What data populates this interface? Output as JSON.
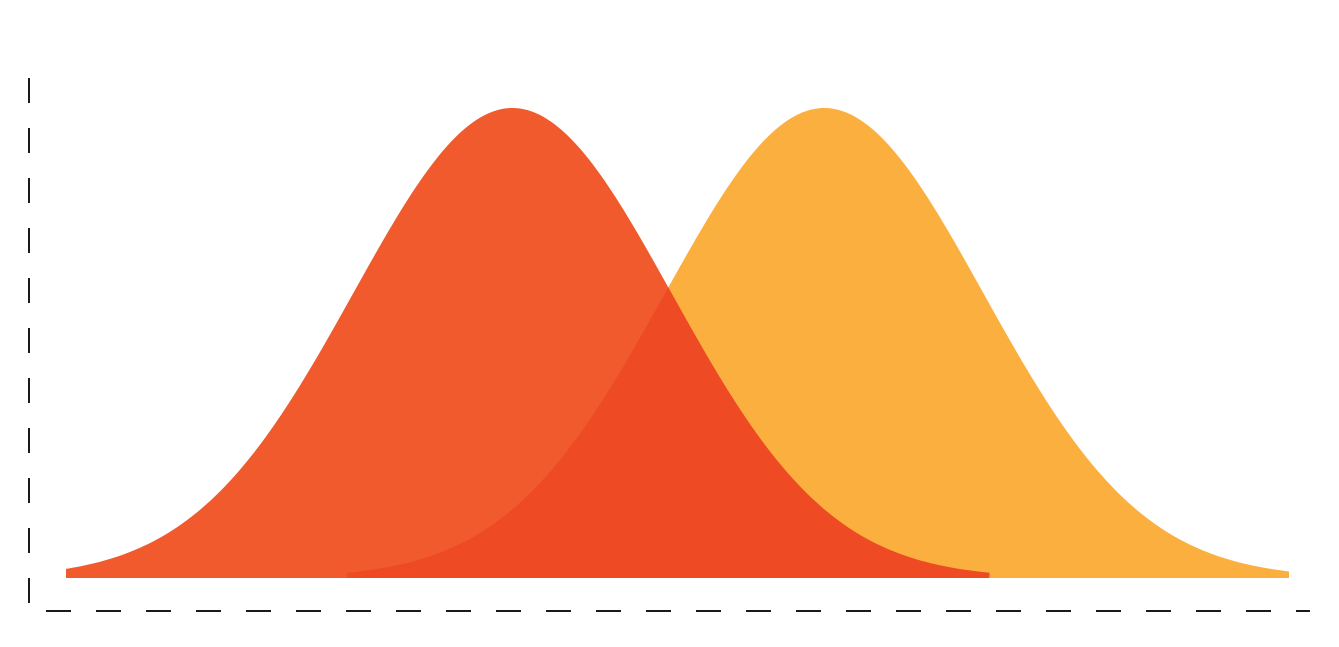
{
  "chart_data": {
    "type": "area",
    "title": "",
    "xlabel": "",
    "ylabel": "",
    "grid": false,
    "legend": "none",
    "xlim": [
      0,
      100
    ],
    "ylim": [
      0,
      1.0
    ],
    "series": [
      {
        "distribution": "normal",
        "mean": 36.5,
        "sd": 13,
        "peak": 1.0,
        "color": "#F05A2C"
      },
      {
        "distribution": "normal",
        "mean": 62,
        "sd": 13,
        "peak": 1.0,
        "color": "#FBAF3F"
      }
    ],
    "overlap_color": "#EE4A24",
    "axes": {
      "style": "dashed",
      "color": "#1a1a1a"
    }
  }
}
